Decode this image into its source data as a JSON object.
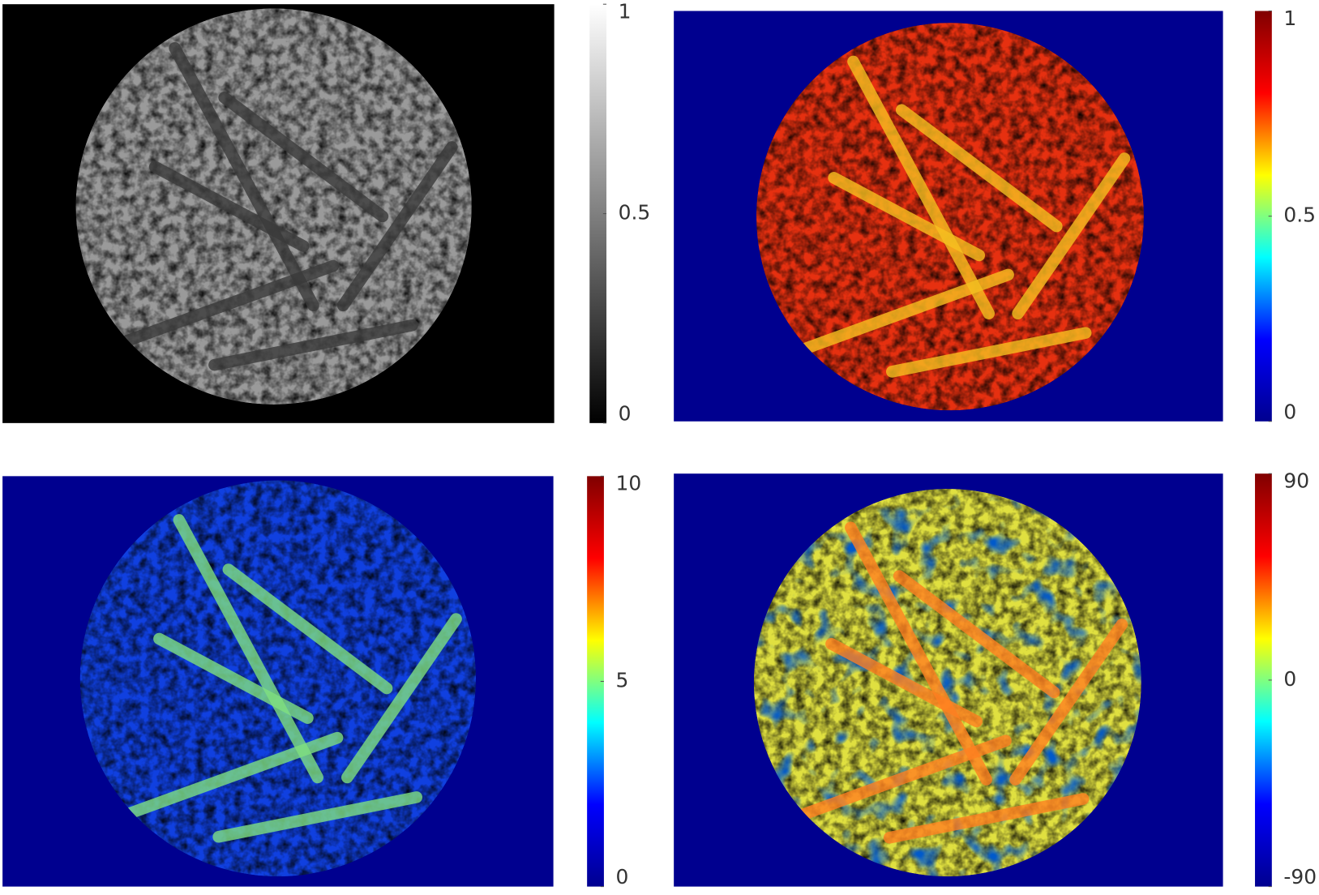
{
  "chart_data": [
    {
      "type": "heatmap",
      "colormap": "gray",
      "clim": [
        0,
        1
      ],
      "cticks": [
        0,
        0.5,
        1
      ]
    },
    {
      "type": "heatmap",
      "colormap": "jet",
      "clim": [
        0,
        1
      ],
      "cticks": [
        0,
        0.5,
        1
      ]
    },
    {
      "type": "heatmap",
      "colormap": "jet",
      "clim": [
        0,
        10
      ],
      "cticks": [
        0,
        5,
        10
      ]
    },
    {
      "type": "heatmap",
      "colormap": "jet",
      "clim": [
        -90,
        90
      ],
      "cticks": [
        -90,
        0,
        90
      ]
    }
  ]
}
